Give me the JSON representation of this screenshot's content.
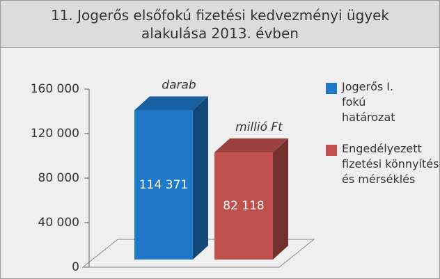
{
  "chart_data": {
    "type": "bar3d",
    "title": "11. Jogerős elsőfokú fizetési kedvezményi ügyek alakulása 2013. évben",
    "series": [
      {
        "name": "Jogerős I. fokú határozat",
        "color": "#1f78c8",
        "values": [
          114371
        ],
        "value_labels": [
          "114 371"
        ],
        "annotation": "darab"
      },
      {
        "name": "Engedélyezett fizetési könnyítés és mérséklés",
        "color": "#c0504d",
        "values": [
          82118
        ],
        "value_labels": [
          "82 118"
        ],
        "annotation": "millió Ft"
      }
    ],
    "ylim": [
      0,
      160000
    ],
    "yticks": [
      {
        "value": 0,
        "label": "0"
      },
      {
        "value": 40000,
        "label": "40 000"
      },
      {
        "value": 80000,
        "label": "80 000"
      },
      {
        "value": 120000,
        "label": "120 000"
      },
      {
        "value": 160000,
        "label": "160 000"
      }
    ],
    "legend": "right"
  }
}
